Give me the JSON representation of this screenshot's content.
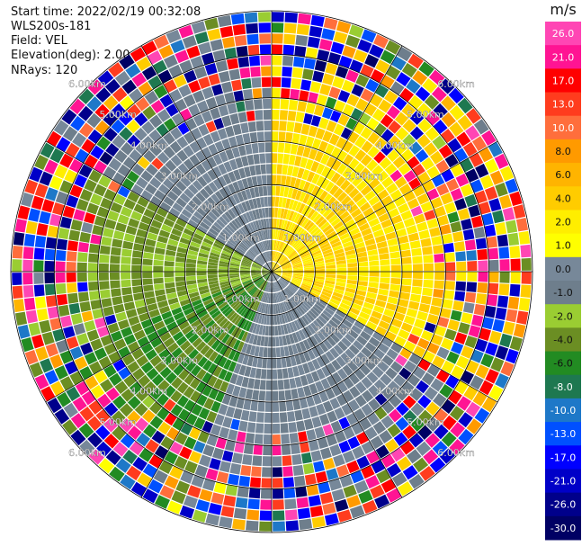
{
  "header": {
    "start_time": "Start time: 2022/02/19 00:32:08",
    "instrument": "WLS200s-181",
    "field": "Field: VEL",
    "elevation": "Elevation(deg): 2.00",
    "nrays": "NRays: 120"
  },
  "chart_data": {
    "type": "ppi-polar-heatmap",
    "title": "Start time: 2022/02/19 00:32:08",
    "instrument": "WLS200s-181",
    "field": "VEL",
    "elevation_deg": 2.0,
    "n_rays": 120,
    "max_range_km": 6.0,
    "range_rings_km": [
      1,
      2,
      3,
      4,
      5,
      6
    ],
    "ring_labels": [
      "1.00km",
      "2.00km",
      "3.00km",
      "4.00km",
      "5.00km",
      "6.00km"
    ],
    "spoke_angles_deg": [
      0,
      30,
      60,
      90,
      120,
      150,
      180,
      210,
      240,
      270,
      300,
      330
    ],
    "sector_summary": [
      {
        "azimuth_range_deg": [
          0,
          120
        ],
        "dominant_velocity_ms": [
          2.0,
          6.0
        ],
        "note": "receding flow, yellow/gold"
      },
      {
        "azimuth_range_deg": [
          120,
          200
        ],
        "dominant_velocity_ms": [
          -0.5,
          0.5
        ],
        "note": "gray near-zero with noisy edge"
      },
      {
        "azimuth_range_deg": [
          200,
          250
        ],
        "dominant_velocity_ms": [
          -6.0,
          -2.0
        ],
        "note": "approaching flow, green"
      },
      {
        "azimuth_range_deg": [
          250,
          300
        ],
        "dominant_velocity_ms": [
          -4.0,
          -1.0
        ],
        "note": "olive/light green inner ranges"
      },
      {
        "azimuth_range_deg": [
          300,
          360
        ],
        "dominant_velocity_ms": [
          -0.5,
          0.5
        ],
        "note": "gray near-zero"
      }
    ],
    "colorbar": {
      "unit": "m/s",
      "ticks": [
        "26.0",
        "21.0",
        "17.0",
        "13.0",
        "10.0",
        "8.0",
        "6.0",
        "4.0",
        "2.0",
        "1.0",
        "0.0",
        "-1.0",
        "-2.0",
        "-4.0",
        "-6.0",
        "-8.0",
        "-10.0",
        "-13.0",
        "-17.0",
        "-21.0",
        "-26.0",
        "-30.0"
      ],
      "colors": [
        "#ff46b4",
        "#ff1493",
        "#ff0000",
        "#ff3c1e",
        "#ff6e3c",
        "#ff9a00",
        "#ffb400",
        "#ffcc00",
        "#ffee00",
        "#ffff00",
        "#778899",
        "#6e7e8c",
        "#9acd32",
        "#6b8e23",
        "#228b22",
        "#1e7850",
        "#1e78c8",
        "#0050ff",
        "#0000ff",
        "#0000c8",
        "#00008b",
        "#000064"
      ]
    }
  }
}
